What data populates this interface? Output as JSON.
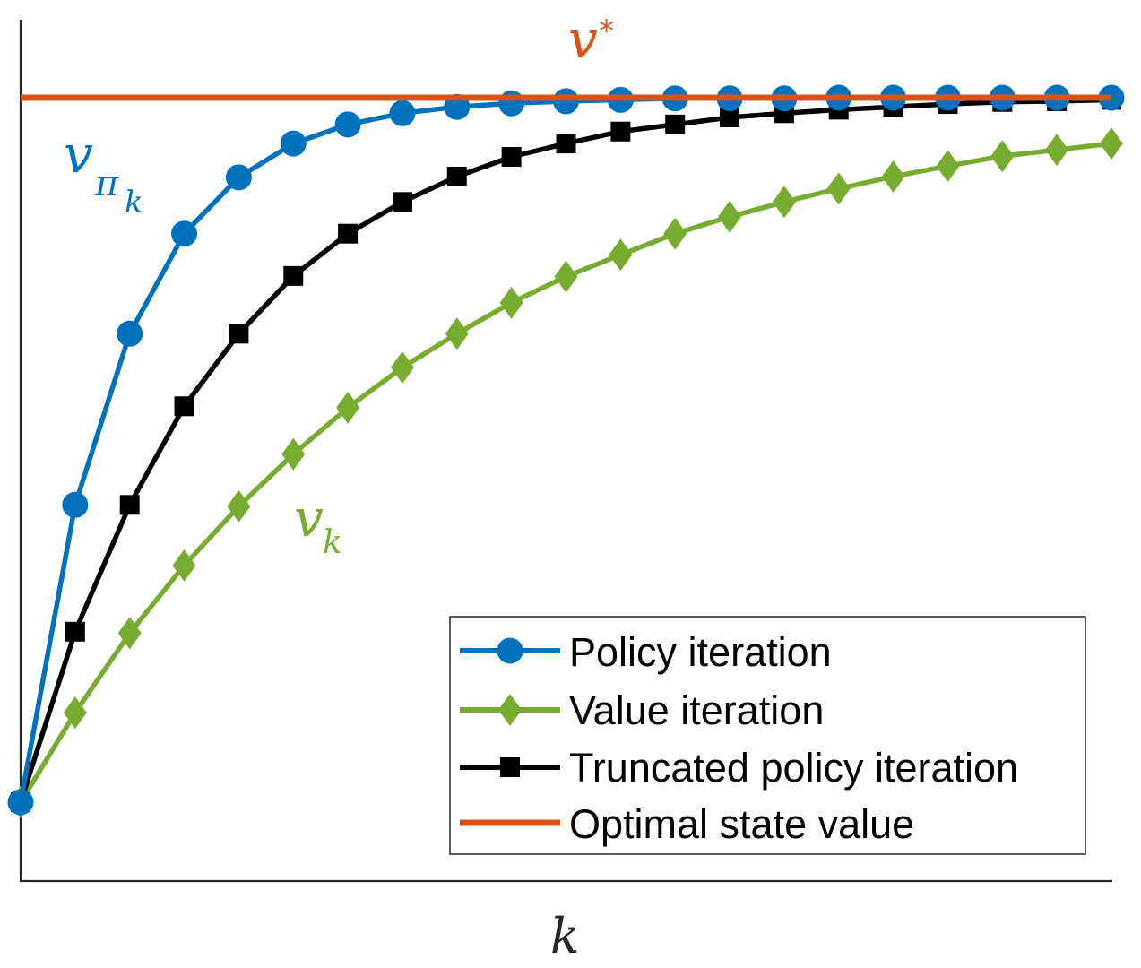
{
  "chart_data": {
    "type": "line",
    "title": "",
    "xlabel": "k",
    "ylabel": "",
    "x": [
      0,
      1,
      2,
      3,
      4,
      5,
      6,
      7,
      8,
      9,
      10,
      11,
      12,
      13,
      14,
      15,
      16,
      17,
      18,
      19,
      20
    ],
    "xlim": [
      0,
      20
    ],
    "ylim": [
      -0.112,
      1.111
    ],
    "grid": false,
    "ticks": "none",
    "legend_position": "lower right",
    "series": [
      {
        "name": "Policy iteration",
        "color": "#0072BD",
        "marker": "circle",
        "values": [
          0,
          0.422,
          0.665,
          0.807,
          0.887,
          0.935,
          0.962,
          0.978,
          0.987,
          0.992,
          0.995,
          0.997,
          0.999,
          0.999,
          0.999,
          1.0,
          1.0,
          1.0,
          1.0,
          1.0,
          1.0
        ]
      },
      {
        "name": "Value iteration",
        "color": "#77AC30",
        "marker": "diamond",
        "values": [
          0,
          0.127,
          0.24,
          0.336,
          0.42,
          0.494,
          0.56,
          0.617,
          0.665,
          0.709,
          0.746,
          0.777,
          0.807,
          0.831,
          0.852,
          0.871,
          0.888,
          0.903,
          0.917,
          0.926,
          0.935
        ]
      },
      {
        "name": "Truncated policy iteration",
        "color": "#000000",
        "marker": "square",
        "values": [
          0,
          0.242,
          0.422,
          0.562,
          0.665,
          0.747,
          0.807,
          0.852,
          0.888,
          0.916,
          0.935,
          0.952,
          0.962,
          0.972,
          0.978,
          0.983,
          0.987,
          0.991,
          0.994,
          0.995,
          0.997
        ]
      },
      {
        "name": "Optimal state value",
        "color": "#D95319",
        "marker": "none",
        "values": [
          1,
          1,
          1,
          1,
          1,
          1,
          1,
          1,
          1,
          1,
          1,
          1,
          1,
          1,
          1,
          1,
          1,
          1,
          1,
          1,
          1
        ]
      }
    ],
    "annotations": [
      {
        "text": "v*",
        "base": "v",
        "sup": "*",
        "color": "#D95319",
        "near": "optimal line, top center"
      },
      {
        "text": "v_{π_k}",
        "base": "v",
        "sub": "π",
        "subsub": "k",
        "color": "#0072BD",
        "near": "policy iteration curve, upper left"
      },
      {
        "text": "v_k",
        "base": "v",
        "sub": "k",
        "color": "#77AC30",
        "near": "value iteration curve, middle"
      }
    ]
  },
  "labels": {
    "xlabel": "k",
    "vstar_base": "v",
    "vstar_sup": "*",
    "vpi_base": "v",
    "vpi_sub": "π",
    "vpi_subsub": "k",
    "vk_base": "v",
    "vk_sub": "k"
  },
  "legend": {
    "items": [
      {
        "label": "Policy iteration"
      },
      {
        "label": "Value iteration"
      },
      {
        "label": "Truncated policy iteration"
      },
      {
        "label": "Optimal state value"
      }
    ]
  }
}
